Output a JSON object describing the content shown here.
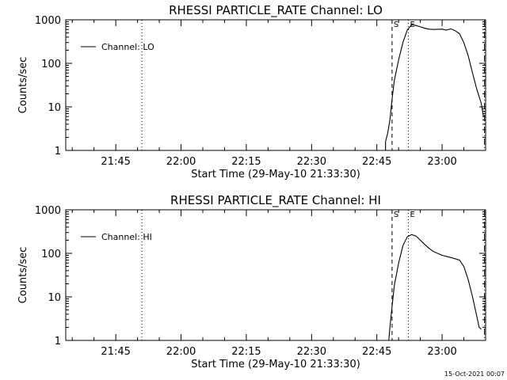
{
  "chart_data": [
    {
      "type": "line",
      "title": "RHESSI PARTICLE_RATE Channel: LO",
      "xlabel": "Start Time (29-May-10 21:33:30)",
      "ylabel": "Counts/sec",
      "y_scale": "log",
      "ylim": [
        1,
        1000
      ],
      "xlim": [
        "21:33:30",
        "23:10:00"
      ],
      "x_ticks": [
        "21:45",
        "22:00",
        "22:15",
        "22:30",
        "22:45",
        "23:00"
      ],
      "y_ticks": [
        "1",
        "10",
        "100",
        "1000"
      ],
      "legend": {
        "label": "Channel: LO",
        "placement": "top-left"
      },
      "markers": [
        {
          "time": "21:51:00",
          "style": "dotted",
          "label": ""
        },
        {
          "time": "22:48:30",
          "style": "dashed",
          "label": "S"
        },
        {
          "time": "22:52:15",
          "style": "dotted",
          "label": "E"
        },
        {
          "time": "23:09:45",
          "style": "dashdot",
          "label": ""
        }
      ],
      "series": [
        {
          "name": "Channel: LO",
          "points": [
            [
              "22:47:00",
              1
            ],
            [
              "22:47:00",
              1.6
            ],
            [
              "22:47:30",
              2.5
            ],
            [
              "22:48:00",
              5
            ],
            [
              "22:48:30",
              15
            ],
            [
              "22:49:00",
              40
            ],
            [
              "22:50:00",
              120
            ],
            [
              "22:51:00",
              300
            ],
            [
              "22:52:00",
              580
            ],
            [
              "22:53:00",
              770
            ],
            [
              "22:54:00",
              740
            ],
            [
              "22:55:00",
              690
            ],
            [
              "22:56:00",
              640
            ],
            [
              "22:57:00",
              610
            ],
            [
              "22:58:00",
              600
            ],
            [
              "23:00:00",
              610
            ],
            [
              "23:01:00",
              580
            ],
            [
              "23:02:00",
              620
            ],
            [
              "23:03:00",
              560
            ],
            [
              "23:04:00",
              480
            ],
            [
              "23:05:00",
              300
            ],
            [
              "23:06:00",
              150
            ],
            [
              "23:07:00",
              60
            ],
            [
              "23:08:00",
              25
            ],
            [
              "23:09:00",
              12
            ],
            [
              "23:09:30",
              6
            ]
          ]
        }
      ]
    },
    {
      "type": "line",
      "title": "RHESSI PARTICLE_RATE Channel: HI",
      "xlabel": "Start Time (29-May-10 21:33:30)",
      "ylabel": "Counts/sec",
      "y_scale": "log",
      "ylim": [
        1,
        1000
      ],
      "xlim": [
        "21:33:30",
        "23:10:00"
      ],
      "x_ticks": [
        "21:45",
        "22:00",
        "22:15",
        "22:30",
        "22:45",
        "23:00"
      ],
      "y_ticks": [
        "1",
        "10",
        "100",
        "1000"
      ],
      "legend": {
        "label": "Channel: HI",
        "placement": "top-left"
      },
      "markers": [
        {
          "time": "21:51:00",
          "style": "dotted",
          "label": ""
        },
        {
          "time": "22:48:30",
          "style": "dashed",
          "label": "S"
        },
        {
          "time": "22:52:15",
          "style": "dotted",
          "label": "E"
        },
        {
          "time": "23:09:45",
          "style": "dashdot",
          "label": ""
        }
      ],
      "series": [
        {
          "name": "Channel: HI",
          "points": [
            [
              "22:47:45",
              1
            ],
            [
              "22:48:00",
              2
            ],
            [
              "22:48:30",
              6
            ],
            [
              "22:49:00",
              18
            ],
            [
              "22:50:00",
              60
            ],
            [
              "22:51:00",
              150
            ],
            [
              "22:52:00",
              240
            ],
            [
              "22:53:00",
              270
            ],
            [
              "22:54:00",
              250
            ],
            [
              "22:55:00",
              200
            ],
            [
              "22:56:00",
              160
            ],
            [
              "22:57:00",
              130
            ],
            [
              "22:58:00",
              110
            ],
            [
              "23:00:00",
              90
            ],
            [
              "23:02:00",
              80
            ],
            [
              "23:04:00",
              70
            ],
            [
              "23:05:00",
              50
            ],
            [
              "23:06:00",
              25
            ],
            [
              "23:07:00",
              10
            ],
            [
              "23:08:00",
              3.5
            ],
            [
              "23:08:30",
              2
            ],
            [
              "23:09:00",
              1.8
            ]
          ]
        }
      ]
    }
  ],
  "footer": {
    "timestamp": "15-Oct-2021 00:07"
  }
}
